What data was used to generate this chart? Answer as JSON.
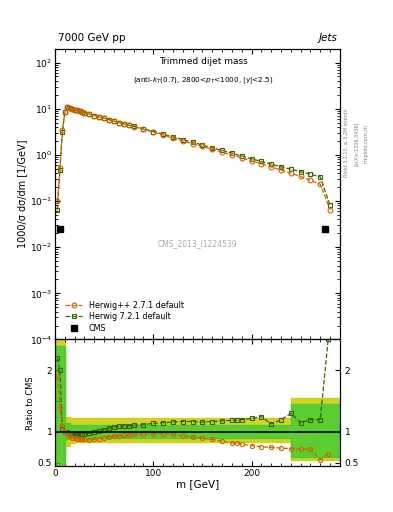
{
  "title_top": "7000 GeV pp",
  "title_right": "Jets",
  "plot_title": "Trimmed dijet mass",
  "plot_subtitle": "(anti-k_{T}(0.7), 2800<p_{T}<1000, |y|<2.5)",
  "ylabel_main": "1000/σ dσ/dm [1/GeV]",
  "ylabel_ratio": "Ratio to CMS",
  "xlabel": "m [GeV]",
  "watermark": "CMS_2013_I1224539",
  "rivet_label": "Rivet 3.1.10, ≥ 3.2M events",
  "arxiv_label": "[arXiv:1306.3436]",
  "mcplots_label": "mcplots.cern.ch",
  "cms_data_x": [
    5,
    275
  ],
  "cms_data_y": [
    0.025,
    0.025
  ],
  "herwig_pp_x": [
    2.5,
    5,
    7.5,
    10,
    12.5,
    15,
    17.5,
    20,
    22.5,
    25,
    27.5,
    30,
    35,
    40,
    45,
    50,
    55,
    60,
    65,
    70,
    75,
    80,
    90,
    100,
    110,
    120,
    130,
    140,
    150,
    160,
    170,
    180,
    190,
    200,
    210,
    220,
    230,
    240,
    250,
    260,
    270,
    280
  ],
  "herwig_pp_y": [
    0.1,
    0.52,
    3.5,
    8.5,
    11.0,
    10.5,
    9.8,
    9.5,
    9.2,
    8.8,
    8.5,
    8.2,
    7.6,
    7.1,
    6.6,
    6.2,
    5.8,
    5.4,
    5.0,
    4.7,
    4.4,
    4.1,
    3.6,
    3.1,
    2.7,
    2.3,
    2.0,
    1.75,
    1.52,
    1.32,
    1.15,
    0.99,
    0.86,
    0.74,
    0.64,
    0.55,
    0.47,
    0.4,
    0.34,
    0.28,
    0.23,
    0.065
  ],
  "herwig7_x": [
    2.5,
    5,
    7.5,
    10,
    12.5,
    15,
    17.5,
    20,
    22.5,
    25,
    27.5,
    30,
    35,
    40,
    45,
    50,
    55,
    60,
    65,
    70,
    75,
    80,
    90,
    100,
    110,
    120,
    130,
    140,
    150,
    160,
    170,
    180,
    190,
    200,
    210,
    220,
    230,
    240,
    250,
    260,
    270,
    280
  ],
  "herwig7_y": [
    0.065,
    0.48,
    3.2,
    8.5,
    11.0,
    10.5,
    9.8,
    9.5,
    9.2,
    8.8,
    8.5,
    8.2,
    7.6,
    7.1,
    6.6,
    6.2,
    5.8,
    5.4,
    5.0,
    4.7,
    4.4,
    4.15,
    3.65,
    3.2,
    2.8,
    2.45,
    2.15,
    1.88,
    1.63,
    1.42,
    1.25,
    1.08,
    0.94,
    0.82,
    0.72,
    0.63,
    0.55,
    0.49,
    0.43,
    0.38,
    0.33,
    0.08
  ],
  "ratio_herwig_pp_x": [
    2.5,
    5,
    7.5,
    10,
    12.5,
    15,
    17.5,
    20,
    22.5,
    25,
    27.5,
    30,
    35,
    40,
    45,
    50,
    55,
    60,
    65,
    70,
    75,
    80,
    90,
    100,
    110,
    120,
    130,
    140,
    150,
    160,
    170,
    180,
    185,
    190,
    200,
    210,
    220,
    230,
    240,
    250,
    260,
    270,
    278
  ],
  "ratio_herwig_pp_y": [
    1.9,
    1.4,
    1.1,
    1.0,
    0.97,
    0.93,
    0.91,
    0.9,
    0.89,
    0.89,
    0.88,
    0.88,
    0.87,
    0.88,
    0.89,
    0.91,
    0.92,
    0.93,
    0.94,
    0.95,
    0.95,
    0.96,
    0.96,
    0.97,
    0.97,
    0.96,
    0.94,
    0.92,
    0.9,
    0.88,
    0.85,
    0.82,
    0.82,
    0.8,
    0.78,
    0.76,
    0.75,
    0.74,
    0.73,
    0.72,
    0.72,
    0.55,
    0.65
  ],
  "ratio_herwig7_x": [
    2.5,
    5,
    7.5,
    10,
    12.5,
    15,
    17.5,
    20,
    22.5,
    25,
    27.5,
    30,
    35,
    40,
    45,
    50,
    55,
    60,
    65,
    70,
    75,
    80,
    90,
    100,
    110,
    120,
    130,
    140,
    150,
    160,
    170,
    180,
    185,
    190,
    200,
    210,
    220,
    230,
    240,
    250,
    260,
    270,
    278
  ],
  "ratio_herwig7_y": [
    2.2,
    2.0,
    1.05,
    1.0,
    1.0,
    0.97,
    0.96,
    0.95,
    0.96,
    0.97,
    0.97,
    0.97,
    0.98,
    1.0,
    1.02,
    1.04,
    1.06,
    1.08,
    1.09,
    1.1,
    1.1,
    1.11,
    1.12,
    1.14,
    1.15,
    1.16,
    1.17,
    1.17,
    1.16,
    1.17,
    1.18,
    1.19,
    1.19,
    1.2,
    1.22,
    1.25,
    1.13,
    1.2,
    1.3,
    1.15,
    1.2,
    1.2,
    2.5
  ],
  "band_yellow_edges": [
    0,
    5,
    10,
    15,
    20,
    25,
    30,
    40,
    50,
    60,
    70,
    80,
    90,
    100,
    110,
    120,
    130,
    140,
    150,
    160,
    170,
    180,
    190,
    200,
    210,
    220,
    230,
    240,
    250,
    260,
    270,
    280,
    290
  ],
  "band_yellow_ylow": [
    0.38,
    0.38,
    0.78,
    0.82,
    0.84,
    0.84,
    0.84,
    0.84,
    0.84,
    0.84,
    0.84,
    0.84,
    0.84,
    0.84,
    0.84,
    0.84,
    0.84,
    0.84,
    0.84,
    0.84,
    0.84,
    0.84,
    0.84,
    0.84,
    0.84,
    0.84,
    0.84,
    0.55,
    0.55,
    0.55,
    0.55,
    0.55,
    0.55
  ],
  "band_yellow_yhigh": [
    2.6,
    2.6,
    1.25,
    1.22,
    1.22,
    1.22,
    1.22,
    1.22,
    1.22,
    1.22,
    1.22,
    1.22,
    1.22,
    1.22,
    1.22,
    1.22,
    1.22,
    1.22,
    1.22,
    1.22,
    1.22,
    1.22,
    1.22,
    1.22,
    1.22,
    1.22,
    1.22,
    1.55,
    1.55,
    1.55,
    1.55,
    1.55,
    1.55
  ],
  "band_green_edges": [
    0,
    5,
    10,
    15,
    20,
    25,
    30,
    40,
    50,
    60,
    70,
    80,
    90,
    100,
    110,
    120,
    130,
    140,
    150,
    160,
    170,
    180,
    190,
    200,
    210,
    220,
    230,
    240,
    250,
    260,
    270,
    280,
    290
  ],
  "band_green_ylow": [
    0.42,
    0.42,
    0.88,
    0.9,
    0.9,
    0.9,
    0.9,
    0.9,
    0.9,
    0.91,
    0.91,
    0.91,
    0.91,
    0.91,
    0.91,
    0.91,
    0.91,
    0.91,
    0.91,
    0.91,
    0.91,
    0.91,
    0.91,
    0.91,
    0.91,
    0.91,
    0.91,
    0.6,
    0.6,
    0.6,
    0.6,
    0.6,
    0.6
  ],
  "band_green_yhigh": [
    2.4,
    2.4,
    1.15,
    1.12,
    1.12,
    1.12,
    1.12,
    1.12,
    1.12,
    1.12,
    1.12,
    1.12,
    1.12,
    1.12,
    1.12,
    1.12,
    1.12,
    1.12,
    1.12,
    1.12,
    1.12,
    1.12,
    1.12,
    1.12,
    1.12,
    1.12,
    1.12,
    1.45,
    1.45,
    1.45,
    1.45,
    1.45,
    1.45
  ],
  "color_herwig_pp": "#cc6600",
  "color_herwig7": "#336600",
  "color_cms": "#000000",
  "color_band_green": "#33cc33",
  "color_band_yellow": "#cccc00",
  "xlim": [
    0,
    290
  ],
  "ylim_main": [
    0.0001,
    200
  ],
  "ylim_ratio": [
    0.45,
    2.5
  ],
  "fig_width": 3.93,
  "fig_height": 5.12
}
